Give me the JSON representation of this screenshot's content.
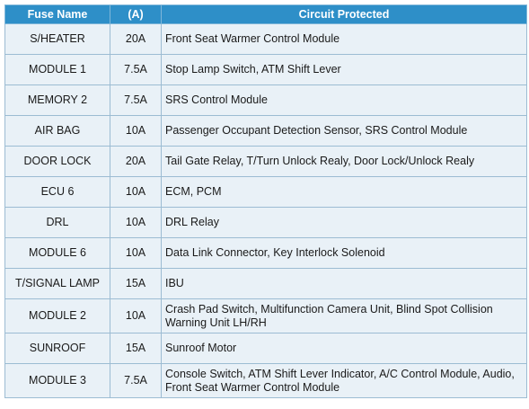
{
  "table": {
    "headers": [
      "Fuse Name",
      "(A)",
      "Circuit Protected"
    ],
    "rows": [
      {
        "name": "S/HEATER",
        "amp": "20A",
        "circuit": "Front Seat Warmer Control Module"
      },
      {
        "name": "MODULE 1",
        "amp": "7.5A",
        "circuit": "Stop Lamp Switch, ATM Shift Lever"
      },
      {
        "name": "MEMORY 2",
        "amp": "7.5A",
        "circuit": "SRS Control Module"
      },
      {
        "name": "AIR BAG",
        "amp": "10A",
        "circuit": "Passenger Occupant Detection Sensor, SRS Control Module"
      },
      {
        "name": "DOOR LOCK",
        "amp": "20A",
        "circuit": "Tail Gate Relay, T/Turn Unlock Realy, Door Lock/Unlock Realy"
      },
      {
        "name": "ECU 6",
        "amp": "10A",
        "circuit": "ECM, PCM"
      },
      {
        "name": "DRL",
        "amp": "10A",
        "circuit": "DRL Relay"
      },
      {
        "name": "MODULE 6",
        "amp": "10A",
        "circuit": "Data Link Connector, Key Interlock Solenoid"
      },
      {
        "name": "T/SIGNAL LAMP",
        "amp": "15A",
        "circuit": "IBU"
      },
      {
        "name": "MODULE 2",
        "amp": "10A",
        "circuit": "Crash Pad Switch, Multifunction Camera Unit, Blind Spot Collision Warning Unit LH/RH"
      },
      {
        "name": "SUNROOF",
        "amp": "15A",
        "circuit": "Sunroof Motor"
      },
      {
        "name": "MODULE 3",
        "amp": "7.5A",
        "circuit": "Console Switch, ATM Shift Lever Indicator, A/C Control Module, Audio, Front Seat Warmer Control Module"
      }
    ]
  }
}
